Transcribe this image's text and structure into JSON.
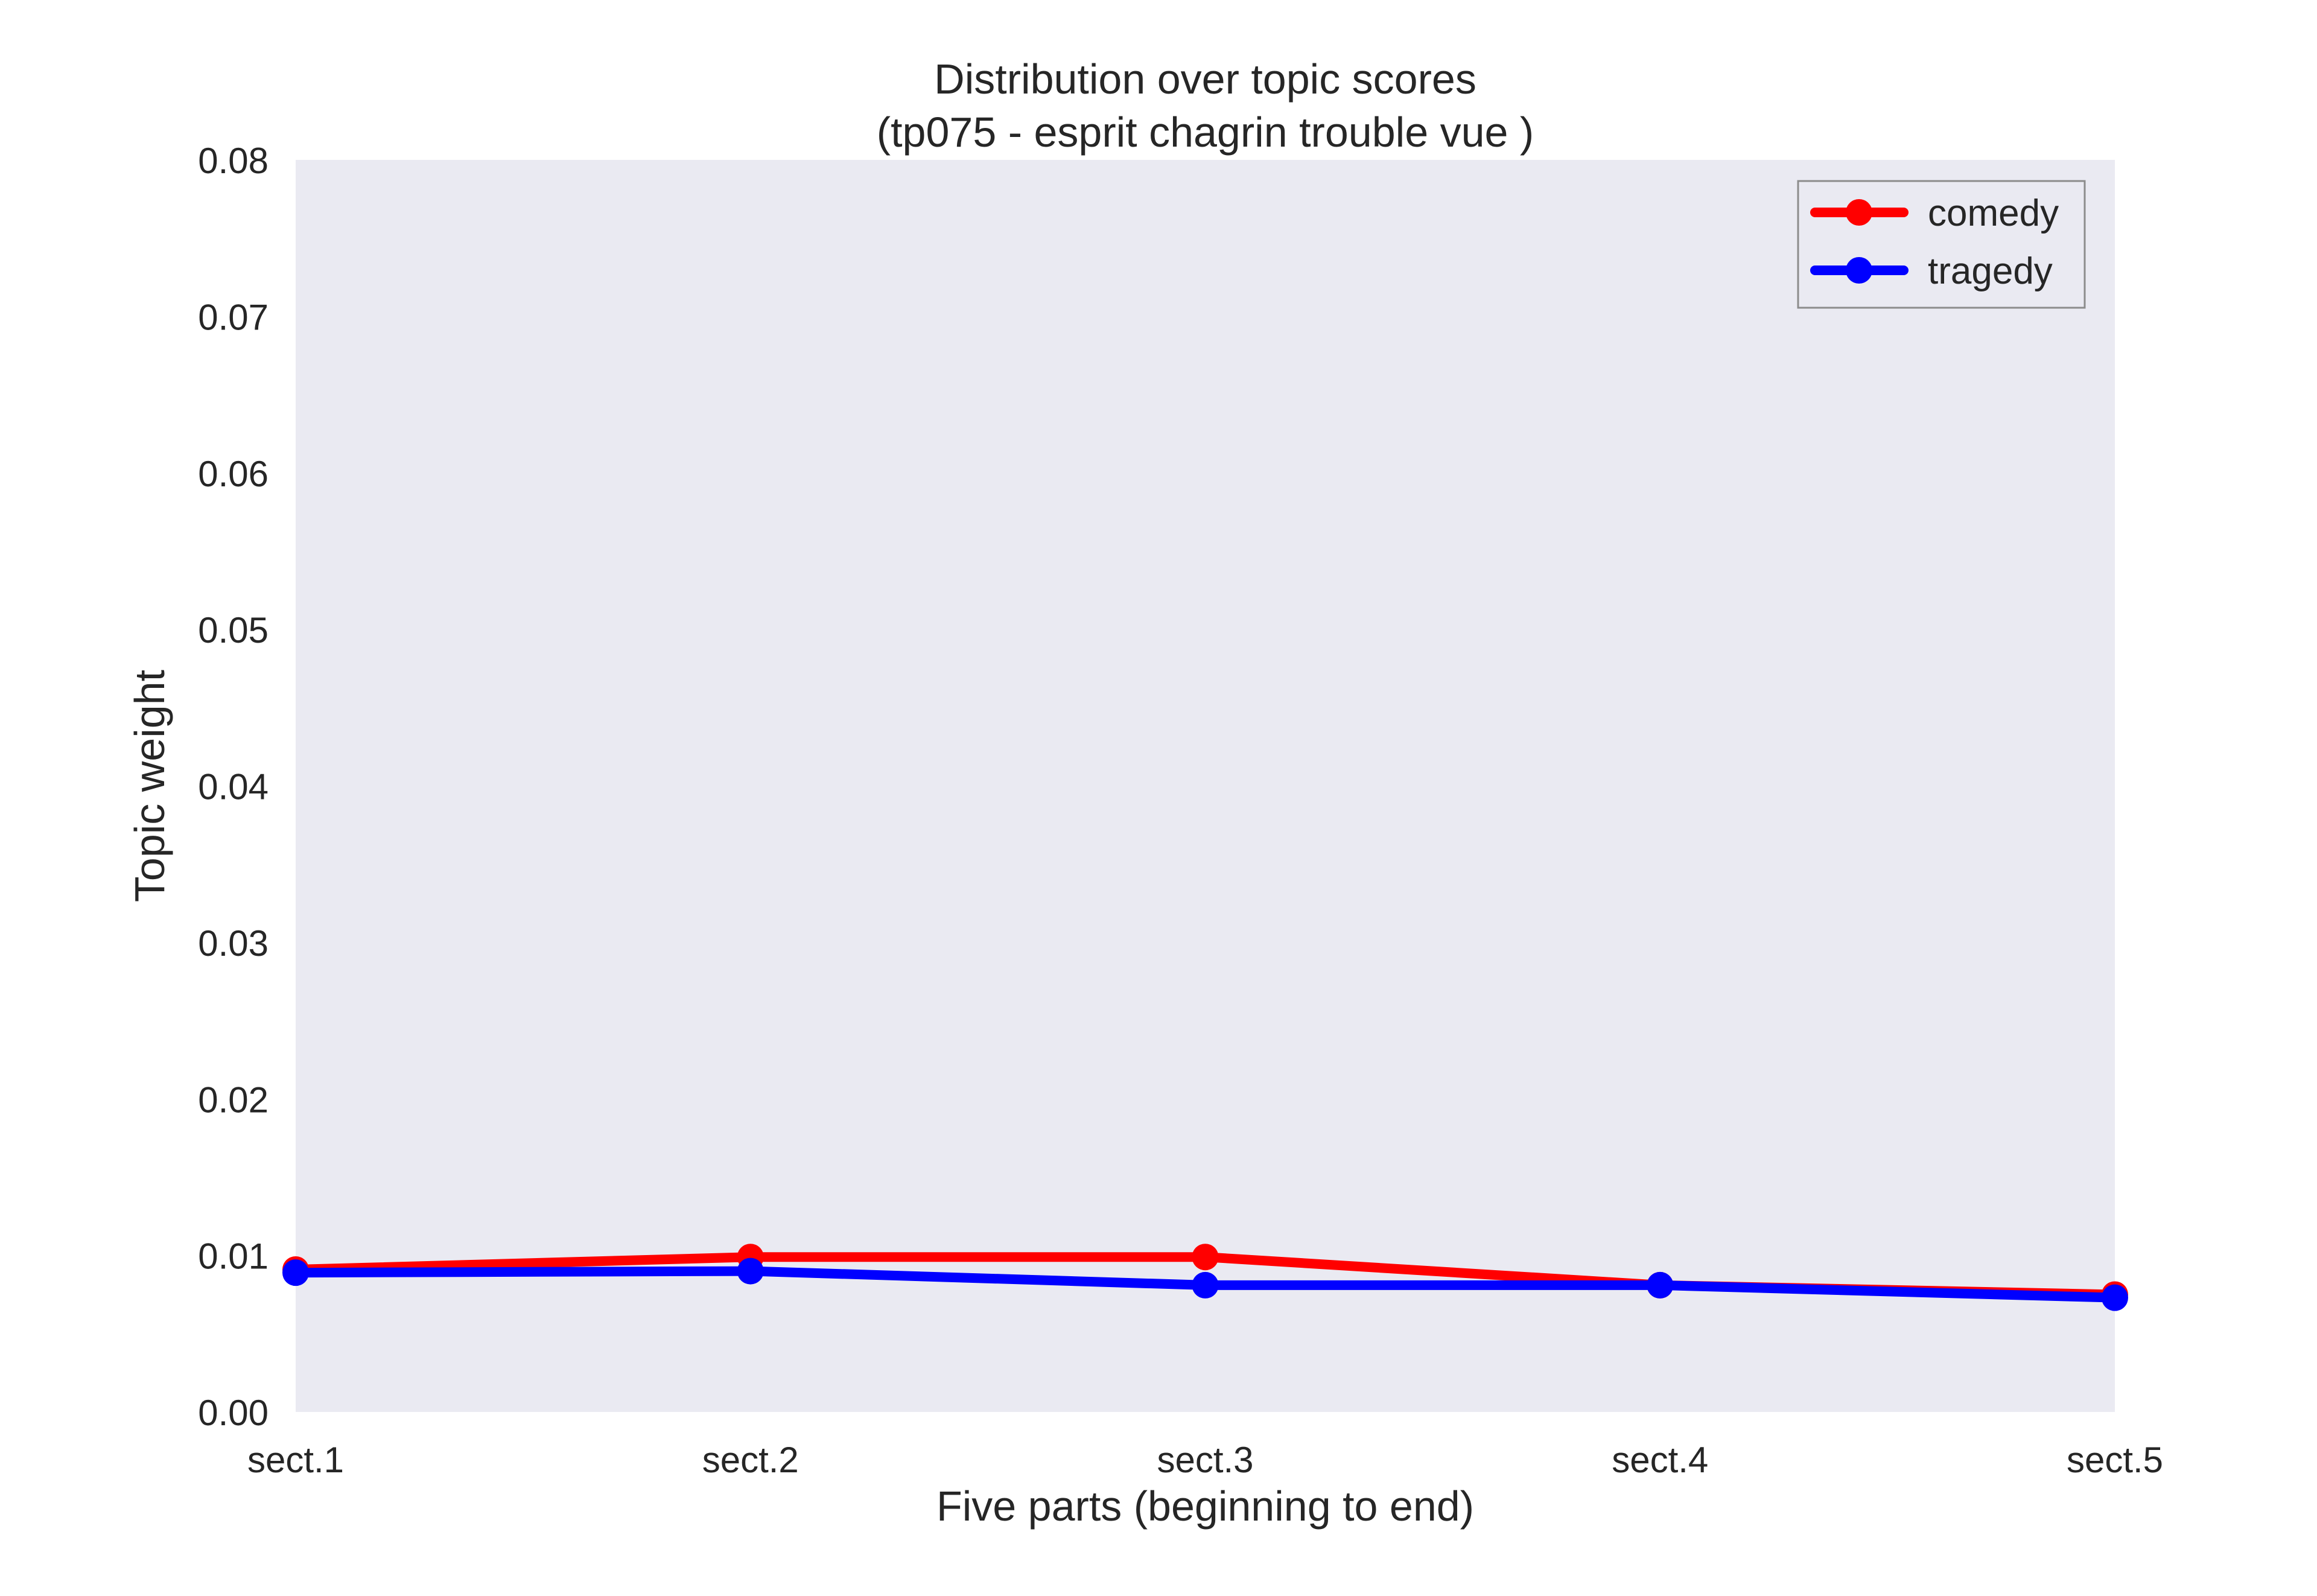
{
  "chart_data": {
    "type": "line",
    "title": "Distribution over topic scores",
    "subtitle": "(tp075 - esprit chagrin trouble vue )",
    "xlabel": "Five parts (beginning to end)",
    "ylabel": "Topic weight",
    "categories": [
      "sect.1",
      "sect.2",
      "sect.3",
      "sect.4",
      "sect.5"
    ],
    "ylim": [
      0,
      0.08
    ],
    "yticks": [
      "0.00",
      "0.01",
      "0.02",
      "0.03",
      "0.04",
      "0.05",
      "0.06",
      "0.07",
      "0.08"
    ],
    "grid": false,
    "legend_position": "top-right",
    "background": "#EAEAF2",
    "series": [
      {
        "name": "comedy",
        "color": "#FF0000",
        "values": [
          0.0091,
          0.0099,
          0.0099,
          0.0081,
          0.0075
        ]
      },
      {
        "name": "tragedy",
        "color": "#0000FF",
        "values": [
          0.0089,
          0.009,
          0.0081,
          0.0081,
          0.0073
        ]
      }
    ]
  }
}
